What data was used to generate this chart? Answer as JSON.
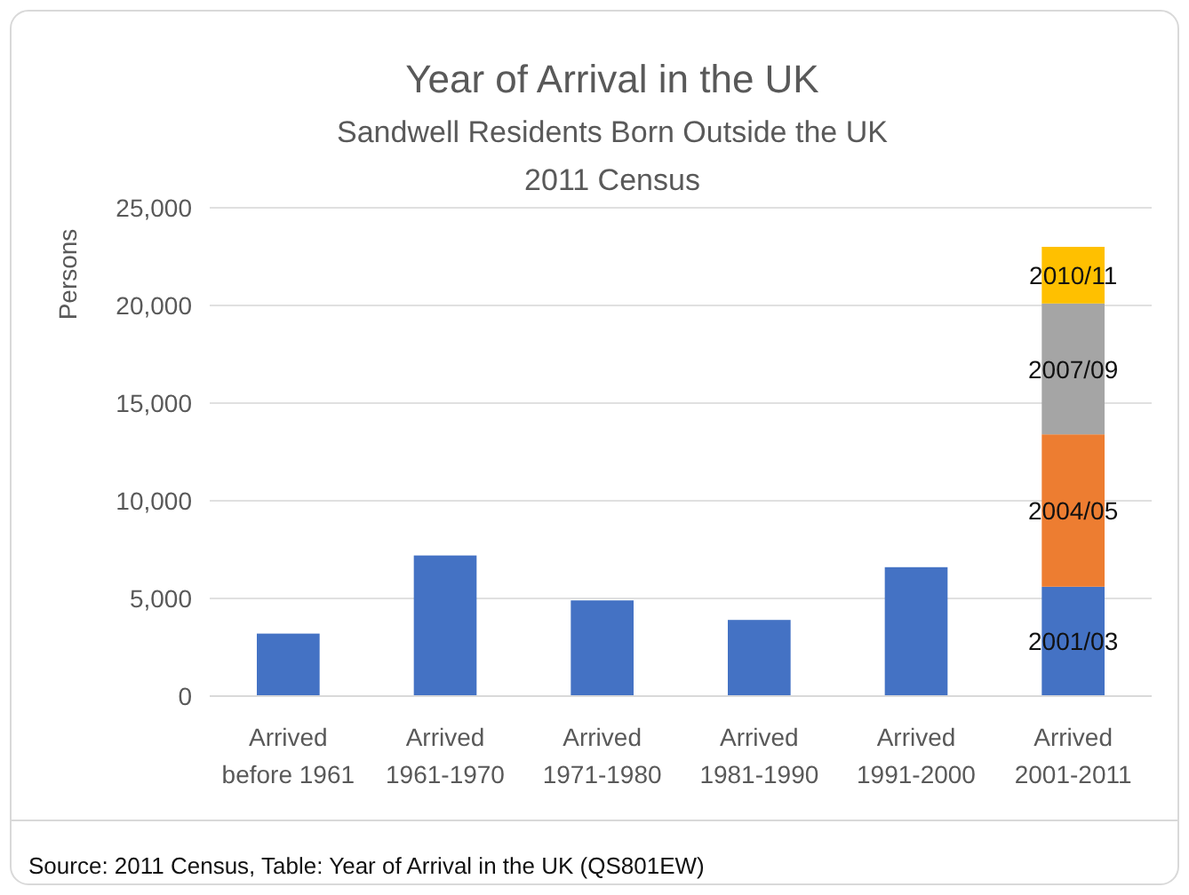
{
  "chart_data": {
    "type": "bar",
    "stacked": true,
    "title": "Year of Arrival in the UK",
    "subtitle": "Sandwell Residents Born Outside the UK\n2011 Census",
    "ylabel": "Persons",
    "categories": [
      "Arrived\nbefore 1961",
      "Arrived\n1961-1970",
      "Arrived\n1971-1980",
      "Arrived\n1981-1990",
      "Arrived\n1991-2000",
      "Arrived\n2001-2011"
    ],
    "series": [
      {
        "name": "2001/03",
        "color": "#4472c4",
        "values": [
          3200,
          7200,
          4900,
          3900,
          6600,
          5600
        ]
      },
      {
        "name": "2004/05",
        "color": "#ed7d31",
        "values": [
          null,
          null,
          null,
          null,
          null,
          7800
        ]
      },
      {
        "name": "2007/09",
        "color": "#a5a5a5",
        "values": [
          null,
          null,
          null,
          null,
          null,
          6700
        ]
      },
      {
        "name": "2010/11",
        "color": "#ffc000",
        "values": [
          null,
          null,
          null,
          null,
          null,
          2900
        ]
      }
    ],
    "ylim": [
      0,
      25000
    ],
    "yticks": [
      {
        "value": 0,
        "label": "0"
      },
      {
        "value": 5000,
        "label": "5,000"
      },
      {
        "value": 10000,
        "label": "10,000"
      },
      {
        "value": 15000,
        "label": "15,000"
      },
      {
        "value": 20000,
        "label": "20,000"
      },
      {
        "value": 25000,
        "label": "25,000"
      }
    ],
    "grid": "y",
    "annotations": [
      "Source: 2011 Census, Table: Year of Arrival in the UK (QS801EW)"
    ]
  }
}
